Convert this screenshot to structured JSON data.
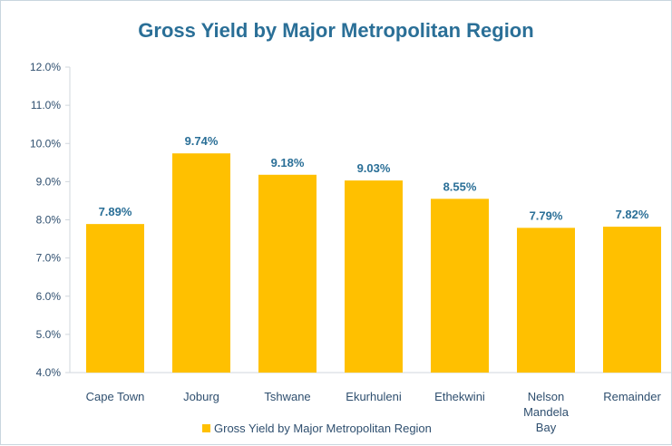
{
  "chart_data": {
    "type": "bar",
    "title": "Gross Yield by Major Metropolitan Region",
    "categories": [
      [
        "Cape Town"
      ],
      [
        "Joburg"
      ],
      [
        "Tshwane"
      ],
      [
        "Ekurhuleni"
      ],
      [
        "Ethekwini"
      ],
      [
        "Nelson",
        "Mandela",
        "Bay"
      ],
      [
        "Remainder"
      ]
    ],
    "series": [
      {
        "name": "Gross Yield by Major Metropolitan Region",
        "values": [
          7.89,
          9.74,
          9.18,
          9.03,
          8.55,
          7.79,
          7.82
        ],
        "labels": [
          "7.89%",
          "9.74%",
          "9.18%",
          "9.03%",
          "8.55%",
          "7.79%",
          "7.82%"
        ],
        "color": "#ffc000"
      }
    ],
    "ylim": [
      4.0,
      12.0
    ],
    "yticks": [
      "4.0%",
      "5.0%",
      "6.0%",
      "7.0%",
      "8.0%",
      "9.0%",
      "10.0%",
      "11.0%",
      "12.0%"
    ],
    "grid": false,
    "legend": "bottom"
  },
  "colors": {
    "bar": "#ffc000",
    "label": "#2a6f97",
    "axis_text": "#2f4f6f",
    "axis_line": "#d0d7dd"
  }
}
